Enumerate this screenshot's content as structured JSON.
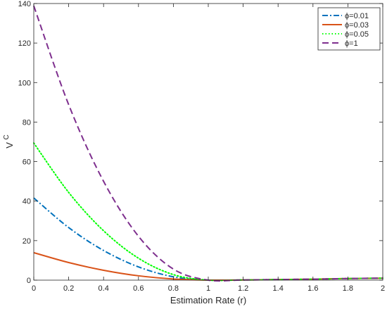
{
  "chart_data": {
    "type": "line",
    "title": "",
    "xlabel": "Estimation Rate (r)",
    "ylabel": "V",
    "ylabel_superscript": "C",
    "xlim": [
      0,
      2
    ],
    "ylim": [
      0,
      140
    ],
    "xticks": [
      0,
      0.2,
      0.4,
      0.6,
      0.8,
      1,
      1.2,
      1.4,
      1.6,
      1.8,
      2
    ],
    "xtick_labels": [
      "0",
      "0.2",
      "0.4",
      "0.6",
      "0.8",
      "1",
      "1.2",
      "1.4",
      "1.6",
      "1.8",
      "2"
    ],
    "yticks": [
      0,
      20,
      40,
      60,
      80,
      100,
      120,
      140
    ],
    "ytick_labels": [
      "0",
      "20",
      "40",
      "60",
      "80",
      "100",
      "120",
      "140"
    ],
    "grid": false,
    "legend_position": "top-right",
    "x": [
      0,
      0.2,
      0.4,
      0.6,
      0.8,
      1,
      1.2,
      1.4,
      1.6,
      1.8,
      2
    ],
    "series": [
      {
        "name": "ϕ=0.01",
        "color": "#0072BD",
        "dash": "dashdot",
        "values": [
          41.6,
          26.6,
          15.0,
          6.7,
          1.7,
          0,
          0.1,
          0.3,
          0.5,
          0.8,
          1.0
        ]
      },
      {
        "name": "ϕ=0.03",
        "color": "#D95319",
        "dash": "solid",
        "values": [
          13.9,
          8.9,
          5.0,
          2.2,
          0.6,
          0,
          0.1,
          0.3,
          0.5,
          0.8,
          1.0
        ]
      },
      {
        "name": "ϕ=0.05",
        "color": "#00FF00",
        "dash": "dotted",
        "values": [
          69.4,
          44.4,
          25.0,
          11.1,
          2.8,
          0,
          0.1,
          0.3,
          0.5,
          0.8,
          1.0
        ]
      },
      {
        "name": "ϕ=1",
        "color": "#7E2F8E",
        "dash": "dashed",
        "values": [
          138.8,
          88.8,
          50.0,
          22.2,
          5.6,
          0,
          0.1,
          0.3,
          0.5,
          0.8,
          1.0
        ]
      }
    ]
  }
}
